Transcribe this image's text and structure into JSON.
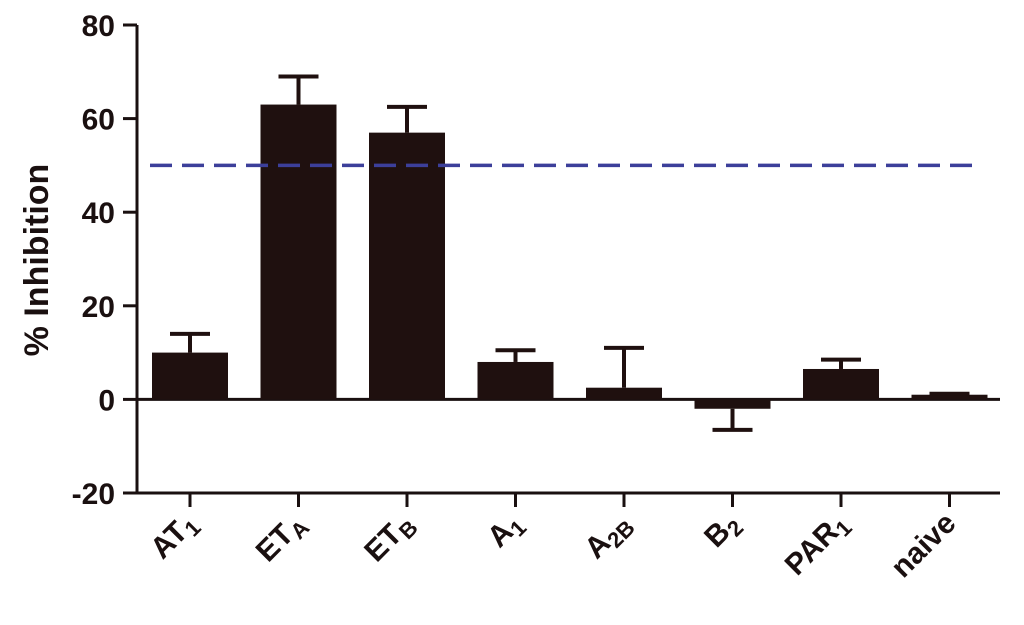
{
  "chart_data": {
    "type": "bar",
    "title": "",
    "xlabel": "",
    "ylabel": "% Inhibition",
    "ylim": [
      -20,
      80
    ],
    "yticks": [
      80,
      60,
      40,
      20,
      0,
      -20
    ],
    "categories": [
      {
        "main": "AT",
        "sub": "1"
      },
      {
        "main": "ET",
        "sub": "A"
      },
      {
        "main": "ET",
        "sub": "B"
      },
      {
        "main": "A",
        "sub": "1"
      },
      {
        "main": "A",
        "sub": "2B"
      },
      {
        "main": "B",
        "sub": "2"
      },
      {
        "main": "PAR",
        "sub": "1"
      },
      {
        "main": "naive",
        "sub": ""
      }
    ],
    "values": [
      10,
      63,
      57,
      8,
      2.5,
      -2,
      6.5,
      1
    ],
    "errors": [
      4,
      6,
      5.5,
      2.5,
      8.5,
      4.5,
      2,
      0.2
    ],
    "reference_line": {
      "y": 50,
      "style": "dashed",
      "color": "#3c3f9a"
    },
    "bar_color": "#1f100f",
    "grid": false,
    "legend": "none"
  }
}
